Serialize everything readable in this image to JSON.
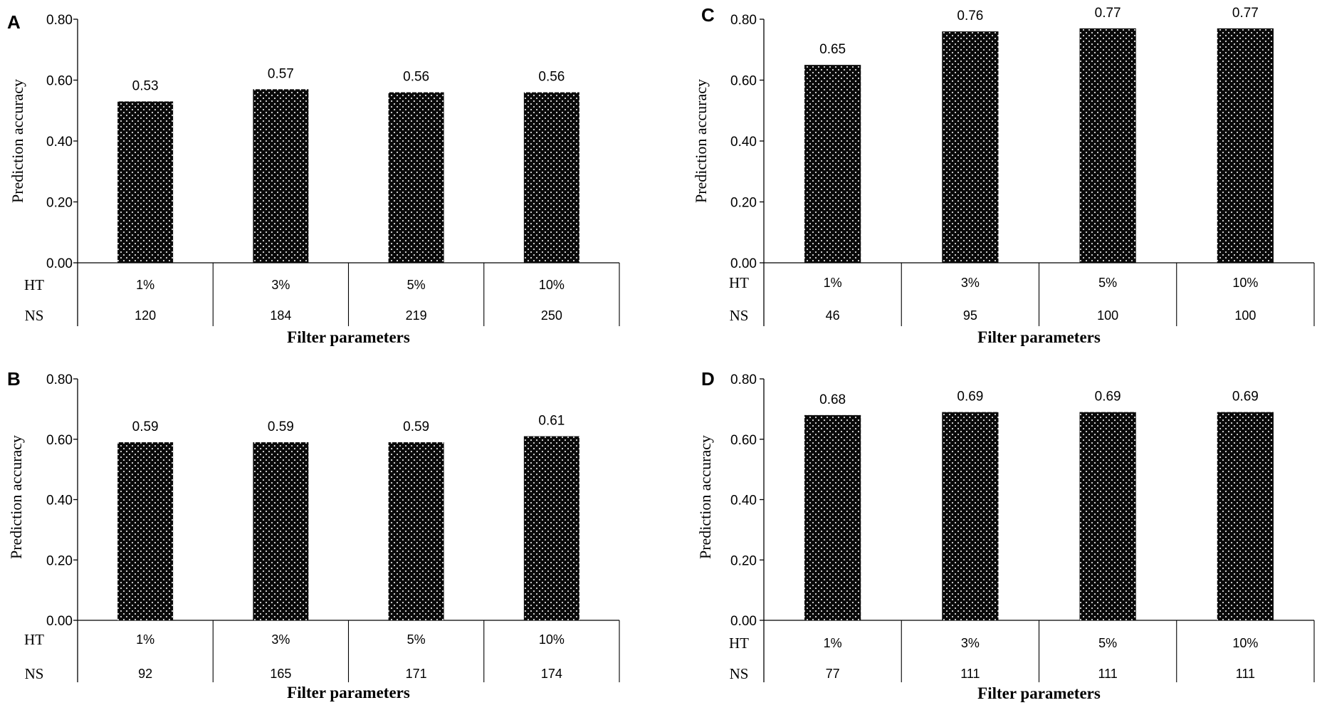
{
  "figure": {
    "background": "#ffffff",
    "bar_color": "#0a0a0a",
    "dot_color": "#ffffff",
    "axis_color": "#000000"
  },
  "chart_data": [
    {
      "panel": "A",
      "type": "bar",
      "categories": [
        "1%",
        "3%",
        "5%",
        "10%"
      ],
      "values": [
        0.53,
        0.57,
        0.56,
        0.56
      ],
      "value_labels": [
        "0.53",
        "0.57",
        "0.56",
        "0.56"
      ],
      "row_labels": [
        "HT",
        "NS"
      ],
      "table_rows": [
        [
          "1%",
          "3%",
          "5%",
          "10%"
        ],
        [
          "120",
          "184",
          "219",
          "250"
        ]
      ],
      "ylabel": "Prediction accuracy",
      "xlabel": "Filter parameters",
      "ylim": [
        0,
        0.8
      ],
      "yticks": [
        "0.00",
        "0.20",
        "0.40",
        "0.60",
        "0.80"
      ]
    },
    {
      "panel": "C",
      "type": "bar",
      "categories": [
        "1%",
        "3%",
        "5%",
        "10%"
      ],
      "values": [
        0.65,
        0.76,
        0.77,
        0.77
      ],
      "value_labels": [
        "0.65",
        "0.76",
        "0.77",
        "0.77"
      ],
      "row_labels": [
        "HT",
        "NS"
      ],
      "table_rows": [
        [
          "1%",
          "3%",
          "5%",
          "10%"
        ],
        [
          "46",
          "95",
          "100",
          "100"
        ]
      ],
      "ylabel": "Prediction accuracy",
      "xlabel": "Filter parameters",
      "ylim": [
        0,
        0.8
      ],
      "yticks": [
        "0.00",
        "0.20",
        "0.40",
        "0.60",
        "0.80"
      ]
    },
    {
      "panel": "B",
      "type": "bar",
      "categories": [
        "1%",
        "3%",
        "5%",
        "10%"
      ],
      "values": [
        0.59,
        0.59,
        0.59,
        0.61
      ],
      "value_labels": [
        "0.59",
        "0.59",
        "0.59",
        "0.61"
      ],
      "row_labels": [
        "HT",
        "NS"
      ],
      "table_rows": [
        [
          "1%",
          "3%",
          "5%",
          "10%"
        ],
        [
          "92",
          "165",
          "171",
          "174"
        ]
      ],
      "ylabel": "Prediction accuracy",
      "xlabel": "Filter parameters",
      "ylim": [
        0,
        0.8
      ],
      "yticks": [
        "0.00",
        "0.20",
        "0.40",
        "0.60",
        "0.80"
      ]
    },
    {
      "panel": "D",
      "type": "bar",
      "categories": [
        "1%",
        "3%",
        "5%",
        "10%"
      ],
      "values": [
        0.68,
        0.69,
        0.69,
        0.69
      ],
      "value_labels": [
        "0.68",
        "0.69",
        "0.69",
        "0.69"
      ],
      "row_labels": [
        "HT",
        "NS"
      ],
      "table_rows": [
        [
          "1%",
          "3%",
          "5%",
          "10%"
        ],
        [
          "77",
          "111",
          "111",
          "111"
        ]
      ],
      "ylabel": "Prediction accuracy",
      "xlabel": "Filter parameters",
      "ylim": [
        0,
        0.8
      ],
      "yticks": [
        "0.00",
        "0.20",
        "0.40",
        "0.60",
        "0.80"
      ]
    }
  ]
}
